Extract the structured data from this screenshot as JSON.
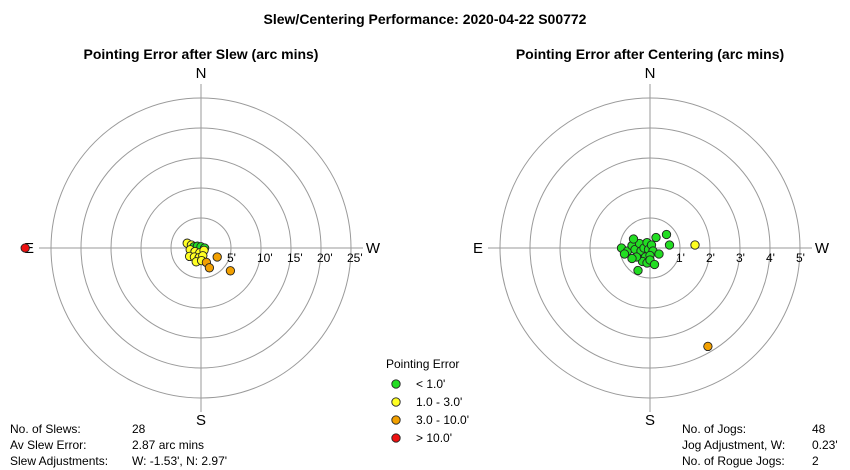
{
  "title": "Slew/Centering Performance: 2020-04-22 S00772",
  "chart_data": [
    {
      "type": "scatter",
      "subtype": "polar",
      "title": "Pointing Error after Slew (arc mins)",
      "compass": {
        "n": "N",
        "s": "S",
        "e": "E",
        "w": "W"
      },
      "rings": [
        5,
        10,
        15,
        20,
        25
      ],
      "ring_labels": [
        "5'",
        "10'",
        "15'",
        "20'",
        "25'"
      ],
      "max_radius": 25,
      "points": [
        {
          "x": -2.3,
          "y": 0.8,
          "c": "yellow"
        },
        {
          "x": -1.6,
          "y": 0.5,
          "c": "yellow"
        },
        {
          "x": -1.2,
          "y": 0.2,
          "c": "green"
        },
        {
          "x": -0.6,
          "y": 0.3,
          "c": "green"
        },
        {
          "x": 0.0,
          "y": 0.2,
          "c": "green"
        },
        {
          "x": 0.6,
          "y": 0.0,
          "c": "green"
        },
        {
          "x": -1.8,
          "y": -0.3,
          "c": "yellow"
        },
        {
          "x": -1.0,
          "y": -0.6,
          "c": "yellow"
        },
        {
          "x": -0.2,
          "y": -0.8,
          "c": "yellow"
        },
        {
          "x": 0.5,
          "y": -0.4,
          "c": "yellow"
        },
        {
          "x": -1.9,
          "y": -1.4,
          "c": "yellow"
        },
        {
          "x": -1.1,
          "y": -1.5,
          "c": "yellow"
        },
        {
          "x": -0.3,
          "y": -1.6,
          "c": "yellow"
        },
        {
          "x": 0.3,
          "y": -1.3,
          "c": "yellow"
        },
        {
          "x": -0.8,
          "y": -2.3,
          "c": "yellow"
        },
        {
          "x": 0.1,
          "y": -2.1,
          "c": "yellow"
        },
        {
          "x": 0.9,
          "y": -2.4,
          "c": "orange"
        },
        {
          "x": 1.4,
          "y": -3.3,
          "c": "orange"
        },
        {
          "x": 2.7,
          "y": -1.5,
          "c": "orange"
        },
        {
          "x": 4.9,
          "y": -3.8,
          "c": "orange"
        },
        {
          "x": -29.3,
          "y": 0.0,
          "c": "red"
        }
      ]
    },
    {
      "type": "scatter",
      "subtype": "polar",
      "title": "Pointing Error after Centering (arc mins)",
      "compass": {
        "n": "N",
        "s": "S",
        "e": "E",
        "w": "W"
      },
      "rings": [
        1,
        2,
        3,
        4,
        5
      ],
      "ring_labels": [
        "1'",
        "2'",
        "3'",
        "4'",
        "5'"
      ],
      "max_radius": 5,
      "points": [
        {
          "x": -0.95,
          "y": 0.0,
          "c": "green"
        },
        {
          "x": -0.75,
          "y": -0.1,
          "c": "green"
        },
        {
          "x": -0.6,
          "y": 0.08,
          "c": "green"
        },
        {
          "x": -0.85,
          "y": -0.2,
          "c": "green"
        },
        {
          "x": -0.5,
          "y": -0.05,
          "c": "green"
        },
        {
          "x": -0.35,
          "y": 0.15,
          "c": "green"
        },
        {
          "x": -0.3,
          "y": -0.1,
          "c": "green"
        },
        {
          "x": -0.2,
          "y": 0.0,
          "c": "green"
        },
        {
          "x": -0.1,
          "y": 0.18,
          "c": "green"
        },
        {
          "x": -0.05,
          "y": -0.05,
          "c": "green"
        },
        {
          "x": 0.05,
          "y": 0.1,
          "c": "green"
        },
        {
          "x": 0.1,
          "y": -0.1,
          "c": "green"
        },
        {
          "x": -0.15,
          "y": -0.3,
          "c": "green"
        },
        {
          "x": 0.0,
          "y": -0.25,
          "c": "green"
        },
        {
          "x": -0.25,
          "y": -0.45,
          "c": "green"
        },
        {
          "x": -0.1,
          "y": -0.5,
          "c": "green"
        },
        {
          "x": 0.0,
          "y": -0.4,
          "c": "green"
        },
        {
          "x": -0.45,
          "y": -0.3,
          "c": "green"
        },
        {
          "x": -0.6,
          "y": -0.35,
          "c": "green"
        },
        {
          "x": -0.4,
          "y": -0.75,
          "c": "green"
        },
        {
          "x": 0.55,
          "y": 0.45,
          "c": "green"
        },
        {
          "x": 0.65,
          "y": 0.1,
          "c": "green"
        },
        {
          "x": 0.2,
          "y": 0.35,
          "c": "green"
        },
        {
          "x": -0.55,
          "y": 0.3,
          "c": "green"
        },
        {
          "x": 0.3,
          "y": -0.2,
          "c": "green"
        },
        {
          "x": 0.15,
          "y": -0.55,
          "c": "green"
        },
        {
          "x": 1.5,
          "y": 0.1,
          "c": "yellow"
        },
        {
          "x": 1.93,
          "y": -3.28,
          "c": "orange"
        }
      ]
    }
  ],
  "legend": {
    "title": "Pointing Error",
    "items": [
      {
        "label": "< 1.0'",
        "color": "#22dd22"
      },
      {
        "label": "1.0 - 3.0'",
        "color": "#ffff22"
      },
      {
        "label": "3.0 - 10.0'",
        "color": "#f2a000"
      },
      {
        "label": "> 10.0'",
        "color": "#ee1111"
      }
    ]
  },
  "slew_stats": [
    {
      "label": "No. of Slews:",
      "value": "28"
    },
    {
      "label": "Av Slew Error:",
      "value": "2.87 arc mins"
    },
    {
      "label": "Slew Adjustments:",
      "value": "W: -1.53', N: 2.97'"
    }
  ],
  "center_stats": [
    {
      "label": "No. of Jogs:",
      "value": "48"
    },
    {
      "label": "Jog Adjustment, W:",
      "value": "0.23'"
    },
    {
      "label": "No. of Rogue Jogs:",
      "value": "2"
    }
  ],
  "colors": {
    "green": "#22dd22",
    "yellow": "#ffff22",
    "orange": "#f2a000",
    "red": "#ee1111",
    "grid": "#9a9a9a"
  }
}
